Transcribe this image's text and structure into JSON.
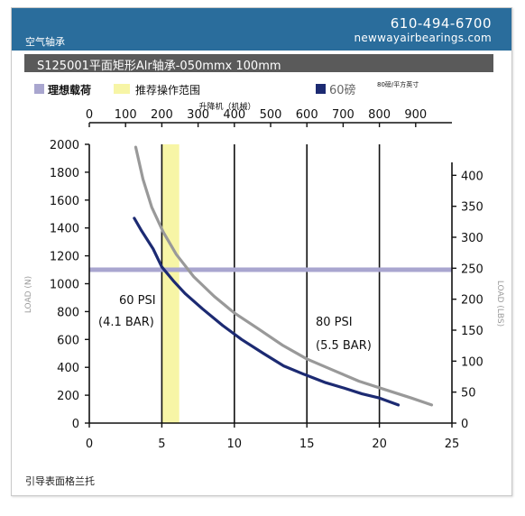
{
  "header": {
    "left_label": "空气轴承",
    "phone": "610-494-6700",
    "website": "newwayairbearings.com"
  },
  "title": "S125001平面矩形Alr轴承-050mmx 100mm",
  "footer": "引导表面格兰托",
  "colors": {
    "header_bg": "#2a6d9c",
    "title_bg": "#5a5a5a",
    "ideal_load": "#a9a6cf",
    "operating_range": "#f7f5a6",
    "series_60": "#1c2a72",
    "series_80": "#999999"
  },
  "legend": {
    "ideal_load": "理想载荷",
    "operating_range": "推荐操作范围",
    "series_60": "60磅",
    "series_80_small": "80磅/平方英寸"
  },
  "chart_data": {
    "type": "line",
    "top_axis_label": "升降机（机械）",
    "left_axis_label": "LOAD (N)",
    "right_axis_label": "LOAD (LBS)",
    "x_bottom": {
      "range": [
        0,
        25
      ],
      "ticks": [
        "0",
        "5",
        "10",
        "15",
        "20",
        "25"
      ]
    },
    "x_top": {
      "range": [
        0,
        1000
      ],
      "ticks": [
        "0",
        "100",
        "200",
        "300",
        "400",
        "500",
        "600",
        "700",
        "800",
        "900"
      ]
    },
    "y_left": {
      "range": [
        0,
        2000
      ],
      "ticks": [
        "0",
        "200",
        "400",
        "600",
        "800",
        "1000",
        "1200",
        "1400",
        "1600",
        "1800",
        "2000"
      ]
    },
    "y_right": {
      "range": [
        0,
        450
      ],
      "ticks": [
        "0",
        "50",
        "100",
        "150",
        "200",
        "250",
        "300",
        "350",
        "400"
      ]
    },
    "grid": "vertical at bottom-axis ticks",
    "ideal_load_N": 1100,
    "recommended_range_x": [
      5,
      6.2
    ],
    "series": [
      {
        "name": "60 PSI",
        "label_lines": [
          "60 PSI",
          "(4.1 BAR)"
        ],
        "x": [
          3.1,
          3.6,
          4.4,
          5.0,
          5.8,
          6.6,
          7.8,
          9.2,
          10.5,
          12.0,
          13.4,
          14.8,
          16.3,
          17.6,
          18.8,
          20.0,
          21.3
        ],
        "y": [
          1470,
          1380,
          1250,
          1120,
          1020,
          930,
          820,
          700,
          600,
          500,
          410,
          350,
          290,
          250,
          210,
          180,
          130
        ]
      },
      {
        "name": "80 PSI",
        "label_lines": [
          "80 PSI",
          "(5.5 BAR)"
        ],
        "x": [
          3.2,
          3.7,
          4.3,
          5.1,
          6.0,
          7.2,
          8.6,
          10.0,
          11.6,
          13.3,
          15.0,
          16.8,
          18.6,
          20.4,
          22.2,
          23.6
        ],
        "y": [
          1980,
          1750,
          1550,
          1370,
          1210,
          1050,
          910,
          790,
          680,
          560,
          460,
          380,
          300,
          240,
          180,
          130
        ]
      }
    ]
  }
}
